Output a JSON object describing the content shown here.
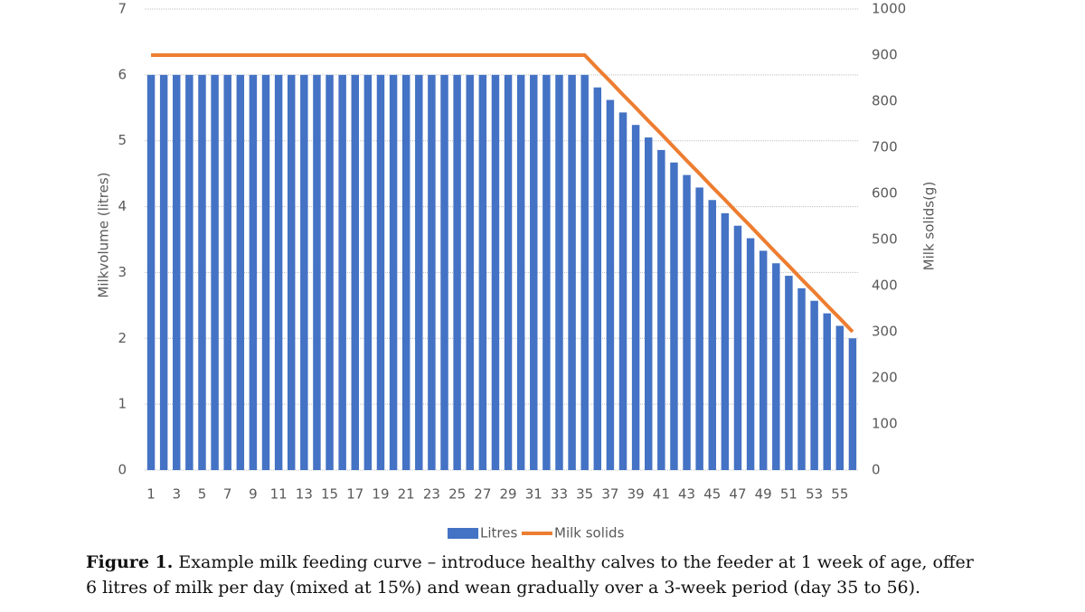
{
  "chart_data": {
    "type": "bar",
    "categories": [
      "1",
      null,
      "3",
      null,
      "5",
      null,
      "7",
      null,
      "9",
      null,
      "11",
      null,
      "13",
      null,
      "15",
      null,
      "17",
      null,
      "19",
      null,
      "21",
      null,
      "23",
      null,
      "25",
      null,
      "27",
      null,
      "29",
      null,
      "31",
      null,
      "33",
      null,
      "35",
      null,
      "37",
      null,
      "39",
      null,
      "41",
      null,
      "43",
      null,
      "45",
      null,
      "47",
      null,
      "49",
      null,
      "51",
      null,
      "53",
      null,
      "55",
      null
    ],
    "series": [
      {
        "name": "Litres",
        "color": "#4472c4",
        "values": [
          6,
          6,
          6,
          6,
          6,
          6,
          6,
          6,
          6,
          6,
          6,
          6,
          6,
          6,
          6,
          6,
          6,
          6,
          6,
          6,
          6,
          6,
          6,
          6,
          6,
          6,
          6,
          6,
          6,
          6,
          6,
          6,
          6,
          6,
          6,
          5.81,
          5.62,
          5.43,
          5.24,
          5.05,
          4.86,
          4.67,
          4.48,
          4.29,
          4.1,
          3.9,
          3.71,
          3.52,
          3.33,
          3.14,
          2.95,
          2.76,
          2.57,
          2.38,
          2.19,
          2
        ]
      },
      {
        "name": "Milk solids",
        "color": "#ed7d31",
        "axis": "y2",
        "values": [
          900,
          900,
          900,
          900,
          900,
          900,
          900,
          900,
          900,
          900,
          900,
          900,
          900,
          900,
          900,
          900,
          900,
          900,
          900,
          900,
          900,
          900,
          900,
          900,
          900,
          900,
          900,
          900,
          900,
          900,
          900,
          900,
          900,
          900,
          900,
          871,
          843,
          814,
          786,
          757,
          729,
          700,
          671,
          643,
          614,
          586,
          557,
          529,
          500,
          471,
          443,
          414,
          386,
          357,
          329,
          300
        ]
      }
    ],
    "y_label": "Milkvolume (litres)",
    "y2_label": "Milk solids(g)",
    "ylim": [
      0,
      7
    ],
    "yticks": [
      0,
      1,
      2,
      3,
      4,
      5,
      6,
      7
    ],
    "y2lim": [
      0,
      1000
    ],
    "y2ticks": [
      0,
      100,
      200,
      300,
      400,
      500,
      600,
      700,
      800,
      900,
      1000
    ],
    "grid": true,
    "legend": "bottom"
  },
  "caption": {
    "label": "Figure 1.",
    "text": "Example milk feeding curve – introduce healthy calves to the feeder at 1 week of age, offer 6 litres of milk per day (mixed at 15%) and wean gradually over a 3-week period (day 35 to 56)."
  }
}
